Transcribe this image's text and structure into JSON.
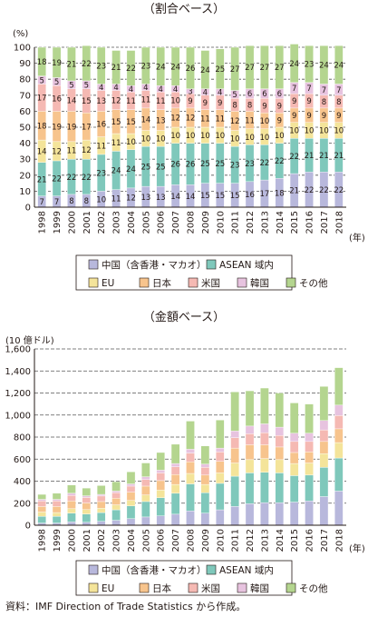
{
  "source_note": "資料：IMF Direction of Trade Statistics から作成。",
  "colors": {
    "china": "#b8b8dc",
    "asean": "#7fc8bb",
    "eu": "#f4e49a",
    "japan": "#f7c48d",
    "us": "#f5b9b3",
    "korea": "#e7c3df",
    "other": "#b4d58f",
    "axis": "#231815",
    "grid": "#555555"
  },
  "chart_data": [
    {
      "type": "bar",
      "stacked": true,
      "title": "（割合ベース）",
      "ylabel": "(%)",
      "xlabel": "(年)",
      "ylim": [
        0,
        100
      ],
      "yticks": [
        0,
        10,
        20,
        30,
        40,
        50,
        60,
        70,
        80,
        90,
        100
      ],
      "grid": true,
      "legend_position": "bottom",
      "categories": [
        "1998",
        "1999",
        "2000",
        "2001",
        "2002",
        "2003",
        "2004",
        "2005",
        "2006",
        "2007",
        "2008",
        "2009",
        "2010",
        "2011",
        "2012",
        "2013",
        "2014",
        "2015",
        "2016",
        "2017",
        "2018"
      ],
      "series": [
        {
          "key": "china",
          "name": "中国（含香港・マカオ）",
          "values": [
            7,
            7,
            8,
            8,
            10,
            11,
            12,
            13,
            13,
            14,
            14,
            15,
            15,
            15,
            16,
            17,
            18,
            21,
            22,
            22,
            22
          ]
        },
        {
          "key": "asean",
          "name": "ASEAN 域内",
          "values": [
            21,
            22,
            22,
            22,
            23,
            24,
            24,
            25,
            25,
            26,
            26,
            25,
            25,
            23,
            23,
            22,
            22,
            22,
            21,
            21,
            21
          ]
        },
        {
          "key": "eu",
          "name": "EU",
          "values": [
            14,
            12,
            11,
            12,
            11,
            11,
            10,
            10,
            10,
            10,
            10,
            10,
            10,
            10,
            10,
            10,
            10,
            10,
            10,
            10,
            10
          ]
        },
        {
          "key": "japan",
          "name": "日本",
          "values": [
            18,
            19,
            19,
            17,
            16,
            15,
            15,
            14,
            13,
            12,
            12,
            11,
            11,
            12,
            11,
            10,
            9,
            9,
            9,
            9,
            9
          ]
        },
        {
          "key": "us",
          "name": "米国",
          "values": [
            17,
            16,
            14,
            15,
            13,
            12,
            11,
            11,
            11,
            10,
            9,
            9,
            9,
            8,
            8,
            9,
            9,
            9,
            9,
            8,
            8
          ]
        },
        {
          "key": "korea",
          "name": "韓国",
          "values": [
            5,
            5,
            5,
            5,
            4,
            4,
            4,
            4,
            4,
            4,
            3,
            4,
            4,
            5,
            6,
            6,
            6,
            7,
            7,
            7,
            7
          ]
        },
        {
          "key": "other",
          "name": "その他",
          "values": [
            18,
            19,
            21,
            22,
            23,
            21,
            22,
            23,
            24,
            24,
            26,
            24,
            25,
            27,
            27,
            27,
            27,
            24,
            23,
            24,
            24
          ]
        }
      ]
    },
    {
      "type": "bar",
      "stacked": true,
      "title": "（金額ベース）",
      "ylabel": "(10 億ドル)",
      "xlabel": "(年)",
      "ylim": [
        0,
        1600
      ],
      "yticks": [
        0,
        200,
        400,
        600,
        800,
        1000,
        1200,
        1400,
        1600
      ],
      "yticks_labels": [
        "0",
        "200",
        "400",
        "600",
        "800",
        "1,000",
        "1,200",
        "1,400",
        "1,600"
      ],
      "grid": true,
      "legend_position": "bottom",
      "categories": [
        "1998",
        "1999",
        "2000",
        "2001",
        "2002",
        "2003",
        "2004",
        "2005",
        "2006",
        "2007",
        "2008",
        "2009",
        "2010",
        "2011",
        "2012",
        "2013",
        "2014",
        "2015",
        "2016",
        "2017",
        "2018"
      ],
      "series": [
        {
          "key": "china",
          "name": "中国（含香港・マカオ）",
          "values": [
            20,
            20,
            30,
            27,
            35,
            45,
            60,
            75,
            85,
            100,
            130,
            110,
            140,
            170,
            195,
            205,
            205,
            210,
            220,
            260,
            310
          ]
        },
        {
          "key": "asean",
          "name": "ASEAN 域内",
          "values": [
            60,
            60,
            80,
            75,
            80,
            95,
            115,
            140,
            165,
            190,
            245,
            185,
            240,
            275,
            280,
            275,
            270,
            240,
            235,
            265,
            300
          ]
        },
        {
          "key": "eu",
          "name": "EU",
          "values": [
            40,
            35,
            40,
            40,
            40,
            45,
            50,
            60,
            70,
            80,
            95,
            75,
            95,
            120,
            120,
            125,
            120,
            110,
            110,
            125,
            140
          ]
        },
        {
          "key": "japan",
          "name": "日本",
          "values": [
            50,
            55,
            70,
            60,
            60,
            60,
            75,
            80,
            85,
            90,
            105,
            85,
            105,
            135,
            135,
            125,
            115,
            100,
            100,
            110,
            125
          ]
        },
        {
          "key": "us",
          "name": "米国",
          "values": [
            50,
            50,
            50,
            50,
            50,
            50,
            55,
            60,
            70,
            70,
            80,
            70,
            85,
            95,
            100,
            110,
            105,
            100,
            95,
            105,
            120
          ]
        },
        {
          "key": "korea",
          "name": "韓国",
          "values": [
            15,
            15,
            20,
            15,
            15,
            15,
            20,
            25,
            25,
            30,
            35,
            30,
            35,
            60,
            70,
            80,
            75,
            75,
            75,
            85,
            95
          ]
        },
        {
          "key": "other",
          "name": "その他",
          "values": [
            45,
            55,
            75,
            70,
            80,
            85,
            110,
            125,
            160,
            175,
            255,
            165,
            255,
            355,
            320,
            325,
            310,
            275,
            265,
            310,
            340
          ]
        }
      ]
    }
  ]
}
